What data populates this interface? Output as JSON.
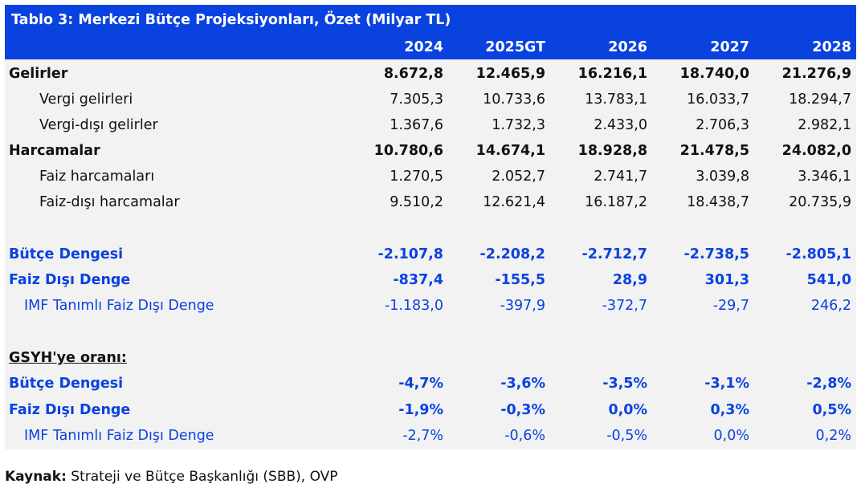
{
  "table": {
    "title": "Tablo 3: Merkezi Bütçe Projeksiyonları, Özet (Milyar TL)",
    "years": [
      "2024",
      "2025GT",
      "2026",
      "2027",
      "2028"
    ],
    "rows": [
      {
        "label": "Gelirler",
        "values": [
          "8.672,8",
          "12.465,9",
          "16.216,1",
          "18.740,0",
          "21.276,9"
        ]
      },
      {
        "label": "Vergi gelirleri",
        "values": [
          "7.305,3",
          "10.733,6",
          "13.783,1",
          "16.033,7",
          "18.294,7"
        ]
      },
      {
        "label": "Vergi-dışı gelirler",
        "values": [
          "1.367,6",
          "1.732,3",
          "2.433,0",
          "2.706,3",
          "2.982,1"
        ]
      },
      {
        "label": "Harcamalar",
        "values": [
          "10.780,6",
          "14.674,1",
          "18.928,8",
          "21.478,5",
          "24.082,0"
        ]
      },
      {
        "label": "Faiz harcamaları",
        "values": [
          "1.270,5",
          "2.052,7",
          "2.741,7",
          "3.039,8",
          "3.346,1"
        ]
      },
      {
        "label": "Faiz-dışı harcamalar",
        "values": [
          "9.510,2",
          "12.621,4",
          "16.187,2",
          "18.438,7",
          "20.735,9"
        ]
      },
      {
        "label": "Bütçe Dengesi",
        "values": [
          "-2.107,8",
          "-2.208,2",
          "-2.712,7",
          "-2.738,5",
          "-2.805,1"
        ]
      },
      {
        "label": "Faiz Dışı Denge",
        "values": [
          "-837,4",
          "-155,5",
          "28,9",
          "301,3",
          "541,0"
        ]
      },
      {
        "label": "IMF Tanımlı Faiz Dışı Denge",
        "values": [
          "-1.183,0",
          "-397,9",
          "-372,7",
          "-29,7",
          "246,2"
        ]
      },
      {
        "label": "GSYH'ye oranı:",
        "values": []
      },
      {
        "label": "Bütçe Dengesi",
        "values": [
          "-4,7%",
          "-3,6%",
          "-3,5%",
          "-3,1%",
          "-2,8%"
        ]
      },
      {
        "label": "Faiz Dışı Denge",
        "values": [
          "-1,9%",
          "-0,3%",
          "0,0%",
          "0,3%",
          "0,5%"
        ]
      },
      {
        "label": "IMF Tanımlı Faiz Dışı Denge",
        "values": [
          "-2,7%",
          "-0,6%",
          "-0,5%",
          "0,0%",
          "0,2%"
        ]
      }
    ]
  },
  "source": {
    "label": "Kaynak:",
    "text": " Strateji ve Bütçe Başkanlığı (SBB), OVP"
  },
  "colors": {
    "header_bg": "#0a42e0",
    "body_bg": "#f2f2f2",
    "accent_text": "#0a42e0"
  }
}
